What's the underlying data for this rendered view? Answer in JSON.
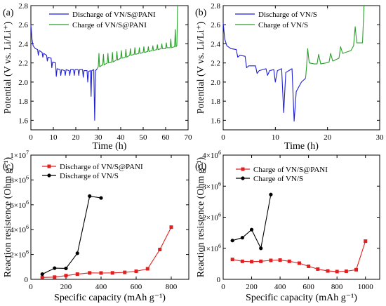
{
  "chart_data": [
    {
      "panel": "(a)",
      "type": "line",
      "xlabel": "Time (h)",
      "ylabel": "Potential (V vs. Li/Li⁺)",
      "xlim": [
        0,
        70
      ],
      "ylim": [
        1.5,
        2.8
      ],
      "xticks": [
        "0",
        "10",
        "20",
        "30",
        "40",
        "50",
        "60",
        "70"
      ],
      "yticks": [
        "1.6",
        "1.8",
        "2.0",
        "2.2",
        "2.4",
        "2.6",
        "2.8"
      ],
      "legend": "top-right",
      "series": [
        {
          "name": "Discharge of VN/S@PANI",
          "color": "#1f1fd6",
          "points": [
            [
              0,
              2.6
            ],
            [
              0.5,
              2.45
            ],
            [
              1,
              2.38
            ],
            [
              2,
              2.35
            ],
            [
              3,
              2.34
            ],
            [
              3.3,
              2.28
            ],
            [
              3.7,
              2.33
            ],
            [
              5,
              2.31
            ],
            [
              5.3,
              2.26
            ],
            [
              5.7,
              2.3
            ],
            [
              7,
              2.28
            ],
            [
              7.3,
              2.22
            ],
            [
              7.7,
              2.26
            ],
            [
              9,
              2.25
            ],
            [
              9.3,
              2.15
            ],
            [
              9.7,
              2.21
            ],
            [
              11,
              2.2
            ],
            [
              11.3,
              2.06
            ],
            [
              11.7,
              2.14
            ],
            [
              13,
              2.13
            ],
            [
              13.3,
              2.07
            ],
            [
              13.7,
              2.13
            ],
            [
              15,
              2.12
            ],
            [
              15.3,
              2.07
            ],
            [
              15.7,
              2.13
            ],
            [
              17,
              2.12
            ],
            [
              17.3,
              2.07
            ],
            [
              17.7,
              2.13
            ],
            [
              19,
              2.13
            ],
            [
              19.3,
              2.07
            ],
            [
              19.7,
              2.13
            ],
            [
              21,
              2.13
            ],
            [
              21.3,
              2.07
            ],
            [
              21.7,
              2.13
            ],
            [
              23,
              2.13
            ],
            [
              23.3,
              2.05
            ],
            [
              23.7,
              2.12
            ],
            [
              25,
              2.12
            ],
            [
              25.3,
              2.0
            ],
            [
              25.7,
              2.11
            ],
            [
              26.5,
              2.12
            ],
            [
              26.8,
              1.85
            ],
            [
              27.1,
              2.12
            ],
            [
              28,
              2.13
            ],
            [
              28.4,
              1.6
            ],
            [
              28.8,
              2.12
            ],
            [
              29.5,
              2.14
            ]
          ]
        },
        {
          "name": "Charge of VN/S@PANI",
          "color": "#2aa02a",
          "points": [
            [
              29.5,
              2.14
            ],
            [
              30,
              2.16
            ],
            [
              30.3,
              2.3
            ],
            [
              30.6,
              2.16
            ],
            [
              32,
              2.18
            ],
            [
              32.3,
              2.29
            ],
            [
              32.6,
              2.18
            ],
            [
              34,
              2.2
            ],
            [
              34.3,
              2.3
            ],
            [
              34.6,
              2.2
            ],
            [
              36,
              2.21
            ],
            [
              36.3,
              2.31
            ],
            [
              36.6,
              2.21
            ],
            [
              38,
              2.23
            ],
            [
              38.3,
              2.32
            ],
            [
              38.6,
              2.23
            ],
            [
              40,
              2.25
            ],
            [
              40.3,
              2.33
            ],
            [
              40.6,
              2.25
            ],
            [
              42,
              2.26
            ],
            [
              42.3,
              2.34
            ],
            [
              42.6,
              2.26
            ],
            [
              44,
              2.28
            ],
            [
              44.3,
              2.35
            ],
            [
              44.6,
              2.28
            ],
            [
              46,
              2.29
            ],
            [
              46.3,
              2.36
            ],
            [
              46.6,
              2.29
            ],
            [
              48,
              2.3
            ],
            [
              48.3,
              2.36
            ],
            [
              48.6,
              2.3
            ],
            [
              50,
              2.31
            ],
            [
              50.3,
              2.37
            ],
            [
              50.6,
              2.31
            ],
            [
              52,
              2.32
            ],
            [
              52.3,
              2.37
            ],
            [
              52.6,
              2.32
            ],
            [
              54,
              2.33
            ],
            [
              54.3,
              2.38
            ],
            [
              54.6,
              2.33
            ],
            [
              56,
              2.34
            ],
            [
              56.3,
              2.39
            ],
            [
              56.6,
              2.34
            ],
            [
              58,
              2.35
            ],
            [
              58.3,
              2.4
            ],
            [
              58.6,
              2.35
            ],
            [
              60,
              2.35
            ],
            [
              60.3,
              2.41
            ],
            [
              60.6,
              2.36
            ],
            [
              62,
              2.36
            ],
            [
              62.3,
              2.45
            ],
            [
              62.6,
              2.36
            ],
            [
              64,
              2.37
            ],
            [
              64.3,
              2.55
            ],
            [
              64.6,
              2.37
            ],
            [
              65,
              2.38
            ],
            [
              65.3,
              2.8
            ]
          ]
        }
      ]
    },
    {
      "panel": "(b)",
      "type": "line",
      "xlabel": "Time (h)",
      "ylabel": "Potential (V vs. Li/Li⁺)",
      "xlim": [
        0,
        30
      ],
      "ylim": [
        1.5,
        2.8
      ],
      "xticks": [
        "0",
        "10",
        "20",
        "30"
      ],
      "yticks": [
        "1.6",
        "1.8",
        "2.0",
        "2.2",
        "2.4",
        "2.6",
        "2.8"
      ],
      "legend": "top-right",
      "series": [
        {
          "name": "Discharge of VN/S",
          "color": "#1f1fd6",
          "points": [
            [
              0,
              2.62
            ],
            [
              0.3,
              2.45
            ],
            [
              0.7,
              2.38
            ],
            [
              1.5,
              2.35
            ],
            [
              2.5,
              2.34
            ],
            [
              2.8,
              2.26
            ],
            [
              3.2,
              2.28
            ],
            [
              4.2,
              2.27
            ],
            [
              4.5,
              2.15
            ],
            [
              4.9,
              2.17
            ],
            [
              6.2,
              2.17
            ],
            [
              6.5,
              2.09
            ],
            [
              6.9,
              2.12
            ],
            [
              8.2,
              2.14
            ],
            [
              8.5,
              2.07
            ],
            [
              8.9,
              2.12
            ],
            [
              9.7,
              2.13
            ],
            [
              10,
              2.0
            ],
            [
              10.4,
              2.12
            ],
            [
              11.2,
              2.14
            ],
            [
              11.6,
              1.68
            ],
            [
              12,
              2.1
            ],
            [
              13.2,
              2.14
            ],
            [
              13.6,
              1.59
            ],
            [
              14,
              1.9
            ],
            [
              15,
              2.0
            ],
            [
              15.8,
              2.04
            ]
          ]
        },
        {
          "name": "Charge of VN/S",
          "color": "#2aa02a",
          "points": [
            [
              15.8,
              2.04
            ],
            [
              16,
              2.17
            ],
            [
              16.2,
              2.35
            ],
            [
              16.5,
              2.2
            ],
            [
              17.5,
              2.19
            ],
            [
              18,
              2.19
            ],
            [
              18.3,
              2.29
            ],
            [
              18.7,
              2.19
            ],
            [
              19.7,
              2.2
            ],
            [
              20.3,
              2.21
            ],
            [
              20.6,
              2.3
            ],
            [
              21,
              2.22
            ],
            [
              22.2,
              2.25
            ],
            [
              22.5,
              2.37
            ],
            [
              22.9,
              2.3
            ],
            [
              24.5,
              2.33
            ],
            [
              25,
              2.38
            ],
            [
              25.3,
              2.58
            ],
            [
              25.6,
              2.41
            ],
            [
              26.7,
              2.41
            ],
            [
              27,
              2.8
            ]
          ]
        }
      ]
    },
    {
      "panel": "(c)",
      "type": "line",
      "xlabel": "Specific capacity (mAh g⁻¹)",
      "ylabel": "Reaction resistence (Ohm g⁻¹)",
      "xlim": [
        0,
        900
      ],
      "ylim": [
        0,
        10000000
      ],
      "xticks": [
        "0",
        "200",
        "400",
        "600",
        "800"
      ],
      "yticks": [
        "0",
        "2×10⁶",
        "4×10⁶",
        "6×10⁶",
        "8×10⁶",
        "1×10⁷"
      ],
      "legend": "top-left",
      "series": [
        {
          "name": "Discharge of VN/S@PANI",
          "color": "#e02020",
          "marker": "square",
          "points": [
            [
              65,
              150000
            ],
            [
              135,
              180000
            ],
            [
              200,
              300000
            ],
            [
              265,
              420000
            ],
            [
              335,
              520000
            ],
            [
              400,
              510000
            ],
            [
              465,
              520000
            ],
            [
              535,
              560000
            ],
            [
              600,
              650000
            ],
            [
              665,
              850000
            ],
            [
              735,
              2400000
            ],
            [
              800,
              4200000
            ]
          ]
        },
        {
          "name": "Discharge of VN/S",
          "color": "#000000",
          "marker": "circle",
          "points": [
            [
              65,
              420000
            ],
            [
              135,
              900000
            ],
            [
              200,
              880000
            ],
            [
              265,
              2100000
            ],
            [
              335,
              6700000
            ],
            [
              400,
              6550000
            ]
          ]
        }
      ]
    },
    {
      "panel": "(d)",
      "type": "line",
      "xlabel": "Specific capacity (mAh g⁻¹)",
      "ylabel": "Reaction resistence (Ohm g⁻¹)",
      "xlim": [
        0,
        1100
      ],
      "ylim": [
        0,
        4000000
      ],
      "xticks": [
        "0",
        "200",
        "400",
        "600",
        "800",
        "1000"
      ],
      "yticks": [
        "0",
        "1×10⁶",
        "2×10⁶",
        "3×10⁶",
        "4×10⁶"
      ],
      "legend": "top-left",
      "series": [
        {
          "name": "Charge of VN/S@PANI",
          "color": "#e02020",
          "marker": "square",
          "points": [
            [
              65,
              640000
            ],
            [
              135,
              580000
            ],
            [
              200,
              570000
            ],
            [
              265,
              580000
            ],
            [
              335,
              610000
            ],
            [
              400,
              620000
            ],
            [
              465,
              580000
            ],
            [
              535,
              520000
            ],
            [
              600,
              420000
            ],
            [
              665,
              330000
            ],
            [
              735,
              270000
            ],
            [
              800,
              250000
            ],
            [
              865,
              260000
            ],
            [
              935,
              310000
            ],
            [
              1000,
              1230000
            ]
          ]
        },
        {
          "name": "Charge of VN/S",
          "color": "#000000",
          "marker": "circle",
          "points": [
            [
              65,
              1250000
            ],
            [
              135,
              1340000
            ],
            [
              200,
              1600000
            ],
            [
              265,
              1000000
            ],
            [
              335,
              2730000
            ]
          ]
        }
      ]
    }
  ]
}
